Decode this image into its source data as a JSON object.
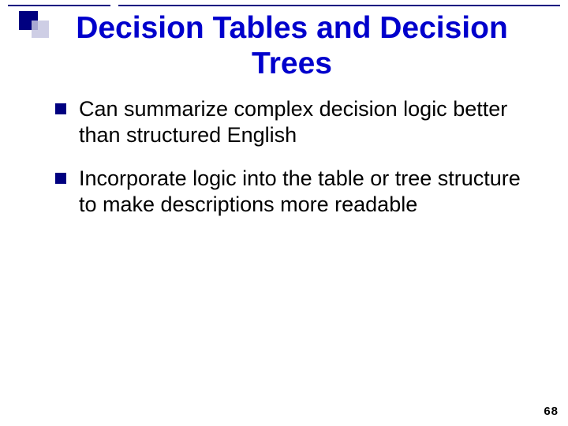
{
  "slide": {
    "title": "Decision Tables and Decision Trees",
    "title_color": "#0000cc",
    "title_fontsize": 39,
    "title_weight": "bold",
    "bullets": [
      "Can summarize complex decision logic better than structured English",
      "Incorporate logic into the table or tree structure to make descriptions more readable"
    ],
    "bullet_color": "#000000",
    "bullet_marker_color": "#000080",
    "bullet_fontsize": 27,
    "page_number": "68",
    "background_color": "#ffffff",
    "accent_color": "#000080",
    "accent_light": "#c6c6e0"
  }
}
